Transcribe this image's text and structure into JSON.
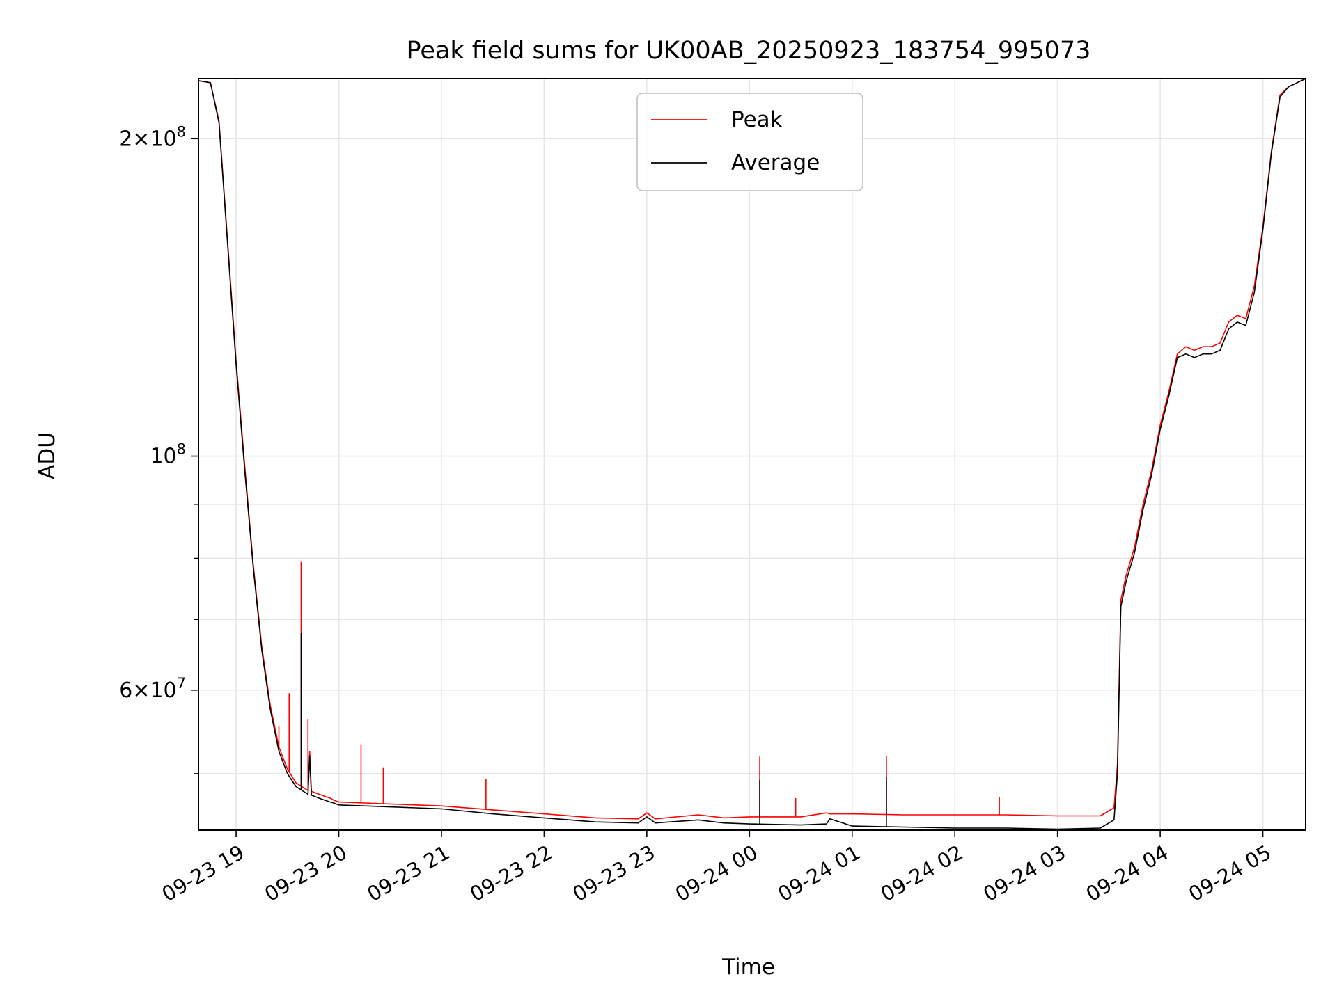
{
  "chart_data": {
    "type": "line",
    "title": "Peak field sums for UK00AB_20250923_183754_995073",
    "xlabel": "Time",
    "ylabel": "ADU",
    "x_range": [
      "2025-09-23 18:38",
      "2025-09-24 05:25"
    ],
    "y_range": [
      44200000,
      228000000
    ],
    "yscale": "log",
    "grid": true,
    "legend_position": "upper center",
    "x_ticks": [
      "09-23 19",
      "09-23 20",
      "09-23 21",
      "09-23 22",
      "09-23 23",
      "09-24 00",
      "09-24 01",
      "09-24 02",
      "09-24 03",
      "09-24 04",
      "09-24 05"
    ],
    "x_tick_times": [
      "2025-09-23 19:00",
      "2025-09-23 20:00",
      "2025-09-23 21:00",
      "2025-09-23 22:00",
      "2025-09-23 23:00",
      "2025-09-24 00:00",
      "2025-09-24 01:00",
      "2025-09-24 02:00",
      "2025-09-24 03:00",
      "2025-09-24 04:00",
      "2025-09-24 05:00"
    ],
    "y_ticks": [
      {
        "value": 200000000,
        "mantissa": "2",
        "exponent": "8"
      },
      {
        "value": 100000000,
        "mantissa": "",
        "exponent": "8"
      },
      {
        "value": 60000000,
        "mantissa": "6",
        "exponent": "7"
      }
    ],
    "y_minor_ticks": [
      50000000,
      70000000,
      80000000,
      90000000
    ],
    "series": [
      {
        "name": "Peak",
        "color": "#ff0000",
        "time": [
          "2025-09-23 18:38",
          "2025-09-23 18:45",
          "2025-09-23 18:50",
          "2025-09-23 18:55",
          "2025-09-23 19:00",
          "2025-09-23 19:05",
          "2025-09-23 19:10",
          "2025-09-23 19:15",
          "2025-09-23 19:20",
          "2025-09-23 19:25",
          "2025-09-23 19:30",
          "2025-09-23 19:35",
          "2025-09-23 19:42",
          "2025-09-23 19:43",
          "2025-09-23 19:44",
          "2025-09-23 19:50",
          "2025-09-23 19:55",
          "2025-09-23 19:57",
          "2025-09-23 20:00",
          "2025-09-23 20:15",
          "2025-09-23 20:30",
          "2025-09-23 20:45",
          "2025-09-23 21:00",
          "2025-09-23 21:30",
          "2025-09-23 22:00",
          "2025-09-23 22:30",
          "2025-09-23 22:55",
          "2025-09-23 23:00",
          "2025-09-23 23:05",
          "2025-09-23 23:30",
          "2025-09-23 23:45",
          "2025-09-24 00:00",
          "2025-09-24 00:30",
          "2025-09-24 00:45",
          "2025-09-24 00:47",
          "2025-09-24 01:00",
          "2025-09-24 01:30",
          "2025-09-24 02:00",
          "2025-09-24 02:30",
          "2025-09-24 03:00",
          "2025-09-24 03:25",
          "2025-09-24 03:33",
          "2025-09-24 03:35",
          "2025-09-24 03:37",
          "2025-09-24 03:40",
          "2025-09-24 03:45",
          "2025-09-24 03:50",
          "2025-09-24 03:55",
          "2025-09-24 04:00",
          "2025-09-24 04:05",
          "2025-09-24 04:10",
          "2025-09-24 04:15",
          "2025-09-24 04:20",
          "2025-09-24 04:25",
          "2025-09-24 04:30",
          "2025-09-24 04:35",
          "2025-09-24 04:40",
          "2025-09-24 04:45",
          "2025-09-24 04:50",
          "2025-09-24 04:55",
          "2025-09-24 05:00",
          "2025-09-24 05:05",
          "2025-09-24 05:10",
          "2025-09-24 05:15",
          "2025-09-24 05:25"
        ],
        "values": [
          227000000,
          226000000,
          208000000,
          160000000,
          123000000,
          98000000,
          79000000,
          66000000,
          58000000,
          53000000,
          50500000,
          49000000,
          48200000,
          52500000,
          48100000,
          47700000,
          47400000,
          47200000,
          47000000,
          46900000,
          46800000,
          46700000,
          46600000,
          46200000,
          45800000,
          45400000,
          45300000,
          45900000,
          45300000,
          45700000,
          45400000,
          45500000,
          45500000,
          45900000,
          45800000,
          45800000,
          45700000,
          45700000,
          45700000,
          45600000,
          45600000,
          46400000,
          51000000,
          73000000,
          77000000,
          82000000,
          90000000,
          97000000,
          107000000,
          115000000,
          125000000,
          127000000,
          126000000,
          127000000,
          127000000,
          128000000,
          134000000,
          136000000,
          135000000,
          145000000,
          165000000,
          195000000,
          220000000,
          224000000,
          228000000
        ]
      },
      {
        "name": "Average",
        "color": "#000000",
        "time": [
          "2025-09-23 18:38",
          "2025-09-23 18:45",
          "2025-09-23 18:50",
          "2025-09-23 18:55",
          "2025-09-23 19:00",
          "2025-09-23 19:05",
          "2025-09-23 19:10",
          "2025-09-23 19:15",
          "2025-09-23 19:20",
          "2025-09-23 19:25",
          "2025-09-23 19:30",
          "2025-09-23 19:35",
          "2025-09-23 19:42",
          "2025-09-23 19:43",
          "2025-09-23 19:44",
          "2025-09-23 19:50",
          "2025-09-23 19:55",
          "2025-09-23 19:57",
          "2025-09-23 20:00",
          "2025-09-23 20:15",
          "2025-09-23 20:30",
          "2025-09-23 20:45",
          "2025-09-23 21:00",
          "2025-09-23 21:30",
          "2025-09-23 22:00",
          "2025-09-23 22:30",
          "2025-09-23 22:55",
          "2025-09-23 23:00",
          "2025-09-23 23:05",
          "2025-09-23 23:30",
          "2025-09-23 23:45",
          "2025-09-24 00:00",
          "2025-09-24 00:30",
          "2025-09-24 00:45",
          "2025-09-24 00:47",
          "2025-09-24 01:00",
          "2025-09-24 01:30",
          "2025-09-24 02:00",
          "2025-09-24 02:30",
          "2025-09-24 03:00",
          "2025-09-24 03:25",
          "2025-09-24 03:33",
          "2025-09-24 03:35",
          "2025-09-24 03:37",
          "2025-09-24 03:40",
          "2025-09-24 03:45",
          "2025-09-24 03:50",
          "2025-09-24 03:55",
          "2025-09-24 04:00",
          "2025-09-24 04:05",
          "2025-09-24 04:10",
          "2025-09-24 04:15",
          "2025-09-24 04:20",
          "2025-09-24 04:25",
          "2025-09-24 04:30",
          "2025-09-24 04:35",
          "2025-09-24 04:40",
          "2025-09-24 04:45",
          "2025-09-24 04:50",
          "2025-09-24 04:55",
          "2025-09-24 05:00",
          "2025-09-24 05:05",
          "2025-09-24 05:10",
          "2025-09-24 05:15",
          "2025-09-24 05:25"
        ],
        "values": [
          227000000,
          226000000,
          207000000,
          159000000,
          122000000,
          97000000,
          78500000,
          65500000,
          57500000,
          52500000,
          50000000,
          48600000,
          47800000,
          52000000,
          47700000,
          47300000,
          47000000,
          46900000,
          46700000,
          46600000,
          46500000,
          46400000,
          46300000,
          45800000,
          45400000,
          45000000,
          44900000,
          45500000,
          44900000,
          45200000,
          44900000,
          44800000,
          44700000,
          44800000,
          45300000,
          44600000,
          44500000,
          44400000,
          44400000,
          44300000,
          44400000,
          45200000,
          50000000,
          72000000,
          76000000,
          81000000,
          89000000,
          96000000,
          106000000,
          114000000,
          124000000,
          125000000,
          124000000,
          125000000,
          125000000,
          126000000,
          132000000,
          134000000,
          133000000,
          143000000,
          164000000,
          194000000,
          219000000,
          224000000,
          228000000
        ]
      }
    ],
    "spikes": [
      {
        "series": "Peak",
        "time": "2025-09-23 19:25",
        "value": 55500000
      },
      {
        "series": "Peak",
        "time": "2025-09-23 19:31",
        "value": 59600000
      },
      {
        "series": "Peak",
        "time": "2025-09-23 19:38",
        "value": 79500000
      },
      {
        "series": "Average",
        "time": "2025-09-23 19:38",
        "value": 68000000
      },
      {
        "series": "Peak",
        "time": "2025-09-23 19:42",
        "value": 56300000
      },
      {
        "series": "Peak",
        "time": "2025-09-23 20:13",
        "value": 53300000
      },
      {
        "series": "Peak",
        "time": "2025-09-23 20:26",
        "value": 50700000
      },
      {
        "series": "Peak",
        "time": "2025-09-23 21:26",
        "value": 49400000
      },
      {
        "series": "Peak",
        "time": "2025-09-24 00:06",
        "value": 51900000
      },
      {
        "series": "Average",
        "time": "2025-09-24 00:06",
        "value": 49300000
      },
      {
        "series": "Peak",
        "time": "2025-09-24 00:27",
        "value": 47400000
      },
      {
        "series": "Peak",
        "time": "2025-09-24 01:20",
        "value": 52000000
      },
      {
        "series": "Average",
        "time": "2025-09-24 01:20",
        "value": 49600000
      },
      {
        "series": "Peak",
        "time": "2025-09-24 02:26",
        "value": 47500000
      }
    ]
  }
}
